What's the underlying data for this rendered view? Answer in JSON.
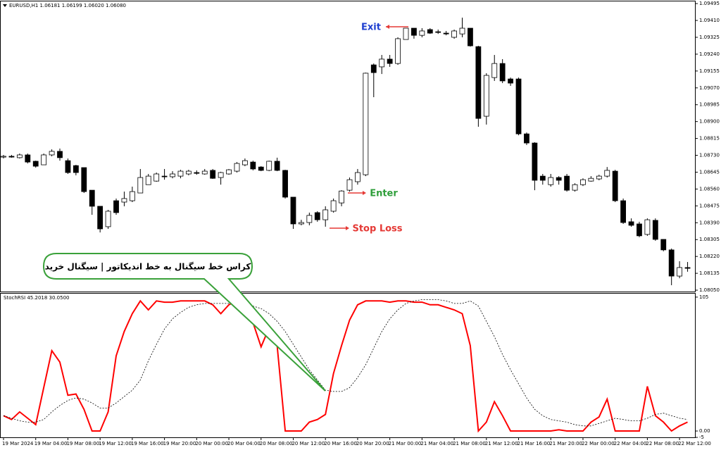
{
  "chart_data": [
    {
      "type": "candlestick",
      "title": "EURUSD,H1  1.06181 1.06199 1.06020 1.06080",
      "open": [
        1.08721,
        1.08725,
        1.08718,
        1.08732,
        1.087,
        1.08682,
        1.08732,
        1.0875,
        1.08703,
        1.08678,
        1.08668,
        1.08554,
        1.08473,
        1.0837,
        1.08501,
        1.08494,
        1.08501,
        1.0854,
        1.08582,
        1.086,
        1.08625,
        1.08622,
        1.08625,
        1.08636,
        1.08643,
        1.08636,
        1.08654,
        1.08618,
        1.08636,
        1.0865,
        1.08682,
        1.08696,
        1.08671,
        1.08654,
        1.087,
        1.08654,
        1.08519,
        1.08384,
        1.08391,
        1.08441,
        1.08405,
        1.08448,
        1.0849,
        1.08554,
        1.08597,
        1.08632,
        1.09186,
        1.09176,
        1.09215,
        1.09193,
        1.09314,
        1.09371,
        1.09335,
        1.09364,
        1.09353,
        1.09346,
        1.09325,
        1.09342,
        1.09371,
        1.09278,
        1.08927,
        1.09122,
        1.09193,
        1.09115,
        1.09115,
        1.08838,
        1.08792,
        1.08625,
        1.08582,
        1.08618,
        1.08625,
        1.08554,
        1.08582,
        1.086,
        1.08611,
        1.08625,
        1.0865,
        1.08501,
        1.08395,
        1.08384,
        1.08331,
        1.08402,
        1.08306,
        1.08253,
        1.08121,
        1.08164
      ],
      "high": [
        1.08732,
        1.08732,
        1.08739,
        1.08739,
        1.08703,
        1.08739,
        1.0876,
        1.08764,
        1.08714,
        1.08682,
        1.08668,
        1.08554,
        1.08473,
        1.08455,
        1.08512,
        1.08547,
        1.08572,
        1.08661,
        1.08636,
        1.08643,
        1.08661,
        1.0865,
        1.08657,
        1.08657,
        1.08654,
        1.08661,
        1.08661,
        1.08647,
        1.08661,
        1.08696,
        1.08714,
        1.08703,
        1.08675,
        1.08703,
        1.08718,
        1.08657,
        1.08519,
        1.08405,
        1.08441,
        1.08448,
        1.08473,
        1.08512,
        1.08554,
        1.08618,
        1.08661,
        1.09147,
        1.09193,
        1.09236,
        1.09236,
        1.09325,
        1.09371,
        1.09371,
        1.09371,
        1.09371,
        1.09364,
        1.09357,
        1.09364,
        1.09424,
        1.09371,
        1.09282,
        1.09144,
        1.09236,
        1.09215,
        1.09122,
        1.09122,
        1.08845,
        1.08796,
        1.08636,
        1.08636,
        1.08625,
        1.08636,
        1.08589,
        1.08614,
        1.08625,
        1.08632,
        1.08671,
        1.08657,
        1.08512,
        1.08412,
        1.08395,
        1.08412,
        1.08412,
        1.08306,
        1.0826,
        1.08196,
        1.08192
      ],
      "low": [
        1.08714,
        1.08718,
        1.08714,
        1.08689,
        1.08668,
        1.08682,
        1.08725,
        1.08703,
        1.08636,
        1.08629,
        1.0854,
        1.0843,
        1.08341,
        1.08359,
        1.0843,
        1.08473,
        1.08494,
        1.0854,
        1.08582,
        1.08597,
        1.08607,
        1.08614,
        1.08614,
        1.08629,
        1.08632,
        1.08632,
        1.08611,
        1.08582,
        1.08632,
        1.08643,
        1.08675,
        1.08654,
        1.0865,
        1.0865,
        1.0865,
        1.08512,
        1.08359,
        1.08377,
        1.08377,
        1.08395,
        1.0837,
        1.08441,
        1.08473,
        1.08547,
        1.08582,
        1.08625,
        1.09023,
        1.0914,
        1.09176,
        1.09186,
        1.09314,
        1.09318,
        1.09325,
        1.09342,
        1.09342,
        1.09335,
        1.09318,
        1.09325,
        1.09278,
        1.08874,
        1.08885,
        1.09105,
        1.09094,
        1.0908,
        1.08831,
        1.08782,
        1.08554,
        1.08582,
        1.08572,
        1.08582,
        1.08547,
        1.08547,
        1.08575,
        1.08597,
        1.08604,
        1.08618,
        1.08494,
        1.08384,
        1.0837,
        1.08317,
        1.08324,
        1.08299,
        1.08246,
        1.08075,
        1.0811,
        1.08143
      ],
      "close": [
        1.08725,
        1.08721,
        1.08732,
        1.08696,
        1.08675,
        1.08732,
        1.0875,
        1.08718,
        1.08643,
        1.08643,
        1.08547,
        1.08473,
        1.08359,
        1.08448,
        1.08441,
        1.08512,
        1.08547,
        1.08618,
        1.08625,
        1.08636,
        1.08622,
        1.08636,
        1.0865,
        1.0865,
        1.08639,
        1.0865,
        1.08614,
        1.08643,
        1.08657,
        1.08689,
        1.08703,
        1.08661,
        1.08654,
        1.087,
        1.08654,
        1.08519,
        1.08384,
        1.08391,
        1.08427,
        1.08405,
        1.08455,
        1.08501,
        1.0855,
        1.08607,
        1.08643,
        1.09144,
        1.09147,
        1.09215,
        1.09193,
        1.09318,
        1.09371,
        1.09335,
        1.09357,
        1.09346,
        1.0935,
        1.09342,
        1.09357,
        1.09371,
        1.09282,
        1.08916,
        1.09133,
        1.09193,
        1.09105,
        1.09094,
        1.08838,
        1.08792,
        1.08604,
        1.08604,
        1.08618,
        1.08604,
        1.08554,
        1.08582,
        1.08607,
        1.08614,
        1.08625,
        1.08654,
        1.08501,
        1.08391,
        1.08377,
        1.08324,
        1.08405,
        1.08306,
        1.08253,
        1.08121,
        1.08164,
        1.0816
      ],
      "up_color": "#ffffff",
      "down_color": "#000000",
      "ylim": [
        1.08043,
        1.09506
      ],
      "yticks": [
        1.09495,
        {
          "value": 1.0941,
          "label": "1.09410"
        },
        1.09325,
        {
          "value": 1.0924,
          "label": "1.09240"
        },
        1.09155,
        {
          "value": 1.0907,
          "label": "1.09070"
        },
        1.08985,
        {
          "value": 1.089,
          "label": "1.08900"
        },
        1.08815,
        {
          "value": 1.0873,
          "label": "1.08730"
        },
        1.08645,
        {
          "value": 1.0856,
          "label": "1.08560"
        },
        1.08475,
        {
          "value": 1.0839,
          "label": "1.08390"
        },
        1.08305,
        {
          "value": 1.0822,
          "label": "1.08220"
        },
        1.08135,
        {
          "value": 1.0805,
          "label": "1.08050"
        }
      ],
      "annotations": [
        "Exit",
        "Enter",
        "Stop Loss",
        "کراس خط سیگنال به خط اندیکاتور | سیگنال خرید"
      ]
    },
    {
      "type": "line",
      "title": "StochRSI 45.2018 30.0500",
      "categories": [
        "19 Mar 2024",
        null,
        null,
        null,
        "19 Mar 04:00",
        null,
        null,
        null,
        "19 Mar 08:00",
        null,
        null,
        null,
        "19 Mar 12:00",
        null,
        null,
        null,
        "19 Mar 16:00",
        null,
        null,
        null,
        "19 Mar 20:00",
        null,
        null,
        null,
        "20 Mar 00:00",
        null,
        null,
        null,
        "20 Mar 04:00",
        null,
        null,
        null,
        "20 Mar 08:00",
        null,
        null,
        null,
        "20 Mar 12:00",
        null,
        null,
        null,
        "20 Mar 16:00",
        null,
        null,
        null,
        "20 Mar 20:00",
        null,
        null,
        null,
        "21 Mar 00:00",
        null,
        null,
        null,
        "21 Mar 04:00",
        null,
        null,
        null,
        "21 Mar 08:00",
        null,
        null,
        null,
        "21 Mar 12:00",
        null,
        null,
        null,
        "21 Mar 16:00",
        null,
        null,
        null,
        "21 Mar 20:00",
        null,
        null,
        null,
        "22 Mar 00:00",
        null,
        null,
        null,
        "22 Mar 04:00",
        null,
        null,
        null,
        "22 Mar 08:00",
        null,
        null,
        null,
        "22 Mar 12:00",
        null
      ],
      "series": [
        {
          "color": "#ff0000",
          "dashed": false,
          "values": [
            12,
            9,
            15,
            10,
            5,
            34,
            63,
            54,
            28,
            29,
            17,
            0,
            0,
            15,
            59,
            78,
            92,
            102,
            95,
            102,
            101,
            101,
            102,
            102,
            102,
            102,
            99,
            92,
            99,
            102,
            102,
            85,
            66,
            81,
            67,
            0,
            0,
            0,
            7,
            9,
            13,
            45,
            67,
            87,
            99,
            102,
            102,
            102,
            101,
            102,
            102,
            101,
            101,
            99,
            99,
            97,
            95,
            92,
            67,
            0,
            7,
            23,
            12,
            0,
            0,
            0,
            0,
            0,
            0,
            1,
            0,
            0,
            0,
            7,
            11,
            25,
            0,
            0,
            0,
            0,
            35,
            12,
            7,
            0,
            4,
            7
          ]
        },
        {
          "color": "#000000",
          "dashed": true,
          "values": [
            12,
            10,
            8,
            7,
            7,
            9,
            15,
            20,
            24,
            26,
            25,
            22,
            18,
            18,
            22,
            27,
            32,
            40,
            55,
            68,
            80,
            88,
            93,
            97,
            99,
            100,
            100,
            100,
            100,
            100,
            99,
            98,
            96,
            92,
            86,
            78,
            68,
            58,
            48,
            40,
            32,
            31,
            31,
            34,
            42,
            52,
            65,
            78,
            88,
            95,
            100,
            102,
            103,
            103,
            103,
            102,
            100,
            100,
            102,
            98,
            86,
            74,
            60,
            48,
            37,
            26,
            17,
            12,
            9,
            8,
            7,
            5,
            4,
            4,
            6,
            8,
            10,
            9,
            8,
            8,
            10,
            13,
            14,
            12,
            10,
            9
          ]
        }
      ],
      "ylim": [
        -5.5,
        107.7
      ],
      "yticks": [
        105,
        {
          "value": 0,
          "label": "0.00"
        },
        -5
      ]
    }
  ]
}
